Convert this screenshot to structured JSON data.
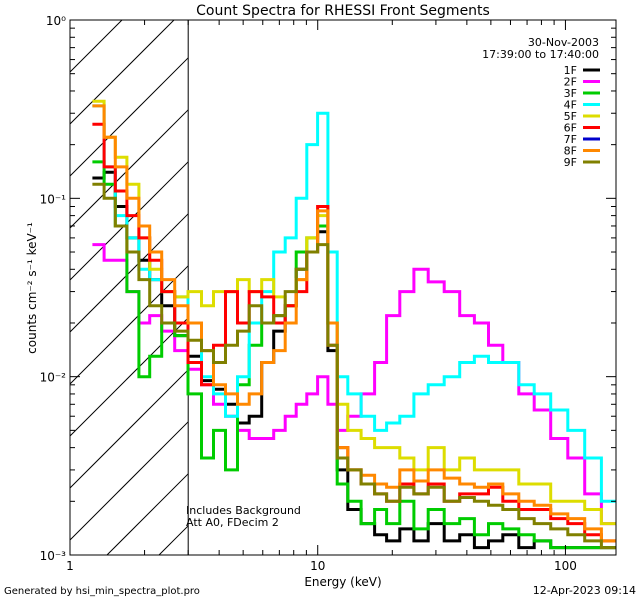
{
  "chart_data": {
    "type": "line",
    "title": "Count Spectra for RHESSI Front Segments",
    "xlabel": "Energy (keV)",
    "ylabel": "counts cm⁻² s⁻¹ keV⁻¹",
    "x_scale": "log",
    "y_scale": "log",
    "xlim": [
      1,
      160
    ],
    "ylim": [
      0.001,
      1
    ],
    "x_ticks": [
      {
        "value": 1,
        "label": "1"
      },
      {
        "value": 10,
        "label": "10"
      },
      {
        "value": 100,
        "label": "100"
      }
    ],
    "y_ticks": [
      {
        "value": 0.001,
        "label": "10⁻³"
      },
      {
        "value": 0.01,
        "label": "10⁻²"
      },
      {
        "value": 0.1,
        "label": "10⁻¹"
      },
      {
        "value": 1,
        "label": "10⁰"
      }
    ],
    "date": "30-Nov-2003",
    "time_range": "17:39:00 to 17:40:00",
    "annotation_lines": [
      "Includes Background",
      "Att A0, FDecim 2"
    ],
    "hatched_region_kev": [
      1,
      3
    ],
    "series": [
      {
        "name": "1F",
        "color": "#000000",
        "x": [
          1.3,
          1.45,
          1.6,
          1.8,
          2.0,
          2.2,
          2.5,
          2.8,
          3.2,
          3.6,
          4.0,
          4.5,
          5.0,
          5.6,
          6.3,
          7.0,
          7.8,
          8.6,
          9.5,
          10.5,
          11.5,
          12.5,
          14,
          16,
          18,
          20,
          23,
          26,
          30,
          35,
          40,
          46,
          52,
          60,
          70,
          80,
          95,
          110,
          130,
          150
        ],
        "y": [
          0.13,
          0.14,
          0.09,
          0.06,
          0.045,
          0.035,
          0.025,
          0.017,
          0.013,
          0.0095,
          0.0085,
          0.007,
          0.0055,
          0.006,
          0.012,
          0.018,
          0.025,
          0.04,
          0.05,
          0.065,
          0.014,
          0.003,
          0.0018,
          0.0015,
          0.0013,
          0.0012,
          0.0014,
          0.0012,
          0.0015,
          0.0012,
          0.0013,
          0.0011,
          0.0012,
          0.0013,
          0.0011,
          0.0012,
          0.0011,
          0.0011,
          0.0011,
          0.0011
        ]
      },
      {
        "name": "2F",
        "color": "#ff00ff",
        "x": [
          1.3,
          1.45,
          1.6,
          1.8,
          2.0,
          2.2,
          2.5,
          2.8,
          3.2,
          3.6,
          4.0,
          4.5,
          5.0,
          5.6,
          6.3,
          7.0,
          7.8,
          8.6,
          9.5,
          10.5,
          11.5,
          12.5,
          14,
          16,
          18,
          20,
          23,
          26,
          30,
          35,
          40,
          46,
          52,
          60,
          70,
          80,
          95,
          110,
          130,
          150
        ],
        "y": [
          0.055,
          0.045,
          0.045,
          0.03,
          0.02,
          0.022,
          0.018,
          0.014,
          0.011,
          0.009,
          0.007,
          0.006,
          0.005,
          0.0045,
          0.0045,
          0.005,
          0.006,
          0.007,
          0.008,
          0.01,
          0.007,
          0.005,
          0.006,
          0.008,
          0.012,
          0.022,
          0.03,
          0.04,
          0.034,
          0.03,
          0.022,
          0.02,
          0.015,
          0.012,
          0.008,
          0.0065,
          0.0045,
          0.0035,
          0.0022,
          0.0015
        ]
      },
      {
        "name": "3F",
        "color": "#00cc00",
        "x": [
          1.3,
          1.45,
          1.6,
          1.8,
          2.0,
          2.2,
          2.5,
          2.8,
          3.2,
          3.6,
          4.0,
          4.5,
          5.0,
          5.6,
          6.3,
          7.0,
          7.8,
          8.6,
          9.5,
          10.5,
          11.5,
          12.5,
          14,
          16,
          18,
          20,
          23,
          26,
          30,
          35,
          40,
          46,
          52,
          60,
          70,
          80,
          95,
          110,
          130,
          150
        ],
        "y": [
          0.16,
          0.12,
          0.07,
          0.03,
          0.01,
          0.013,
          0.02,
          0.017,
          0.008,
          0.0035,
          0.005,
          0.003,
          0.009,
          0.015,
          0.02,
          0.022,
          0.025,
          0.05,
          0.06,
          0.07,
          0.02,
          0.0025,
          0.002,
          0.0015,
          0.0018,
          0.0015,
          0.002,
          0.0014,
          0.0018,
          0.0015,
          0.0016,
          0.0013,
          0.0015,
          0.0014,
          0.0013,
          0.0012,
          0.0011,
          0.0011,
          0.0011,
          0.0011
        ]
      },
      {
        "name": "4F",
        "color": "#00ffff",
        "x": [
          1.3,
          1.45,
          1.6,
          1.8,
          2.0,
          2.2,
          2.5,
          2.8,
          3.2,
          3.6,
          4.0,
          4.5,
          5.0,
          5.6,
          6.3,
          7.0,
          7.8,
          8.6,
          9.5,
          10.5,
          11.5,
          12.5,
          14,
          16,
          18,
          20,
          23,
          26,
          30,
          35,
          40,
          46,
          52,
          60,
          70,
          80,
          95,
          110,
          130,
          150
        ],
        "y": [
          0.33,
          0.15,
          0.08,
          0.06,
          0.04,
          0.035,
          0.03,
          0.028,
          0.02,
          0.01,
          0.008,
          0.006,
          0.01,
          0.02,
          0.03,
          0.05,
          0.06,
          0.1,
          0.2,
          0.3,
          0.05,
          0.01,
          0.008,
          0.006,
          0.005,
          0.0055,
          0.006,
          0.008,
          0.009,
          0.01,
          0.012,
          0.013,
          0.012,
          0.012,
          0.009,
          0.008,
          0.0065,
          0.005,
          0.0035,
          0.002
        ]
      },
      {
        "name": "5F",
        "color": "#dddd00",
        "x": [
          1.3,
          1.45,
          1.6,
          1.8,
          2.0,
          2.2,
          2.5,
          2.8,
          3.2,
          3.6,
          4.0,
          4.5,
          5.0,
          5.6,
          6.3,
          7.0,
          7.8,
          8.6,
          9.5,
          10.5,
          11.5,
          12.5,
          14,
          16,
          18,
          20,
          23,
          26,
          30,
          35,
          40,
          46,
          52,
          60,
          70,
          80,
          95,
          110,
          130,
          150
        ],
        "y": [
          0.35,
          0.22,
          0.17,
          0.12,
          0.06,
          0.04,
          0.03,
          0.028,
          0.03,
          0.025,
          0.03,
          0.03,
          0.035,
          0.03,
          0.035,
          0.028,
          0.025,
          0.035,
          0.06,
          0.08,
          0.02,
          0.007,
          0.005,
          0.0045,
          0.004,
          0.004,
          0.0035,
          0.003,
          0.004,
          0.003,
          0.0035,
          0.003,
          0.003,
          0.003,
          0.0025,
          0.0025,
          0.002,
          0.002,
          0.0018,
          0.0015
        ]
      },
      {
        "name": "6F",
        "color": "#ff0000",
        "x": [
          1.3,
          1.45,
          1.6,
          1.8,
          2.0,
          2.2,
          2.5,
          2.8,
          3.2,
          3.6,
          4.0,
          4.5,
          5.0,
          5.6,
          6.3,
          7.0,
          7.8,
          8.6,
          9.5,
          10.5,
          11.5,
          12.5,
          14,
          16,
          18,
          20,
          23,
          26,
          30,
          35,
          40,
          46,
          52,
          60,
          70,
          80,
          95,
          110,
          130,
          150
        ],
        "y": [
          0.26,
          0.15,
          0.11,
          0.08,
          0.06,
          0.045,
          0.03,
          0.02,
          0.012,
          0.009,
          0.015,
          0.03,
          0.02,
          0.03,
          0.028,
          0.02,
          0.025,
          0.03,
          0.05,
          0.09,
          0.015,
          0.004,
          0.003,
          0.0025,
          0.0022,
          0.002,
          0.0025,
          0.0022,
          0.0025,
          0.002,
          0.0022,
          0.0022,
          0.0024,
          0.002,
          0.0018,
          0.0018,
          0.0016,
          0.0015,
          0.0013,
          0.0012
        ]
      },
      {
        "name": "7F",
        "color": "#0000cc",
        "x": [],
        "y": []
      },
      {
        "name": "8F",
        "color": "#ff8800",
        "x": [
          1.3,
          1.45,
          1.6,
          1.8,
          2.0,
          2.2,
          2.5,
          2.8,
          3.2,
          3.6,
          4.0,
          4.5,
          5.0,
          5.6,
          6.3,
          7.0,
          7.8,
          8.6,
          9.5,
          10.5,
          11.5,
          12.5,
          14,
          16,
          18,
          20,
          23,
          26,
          30,
          35,
          40,
          46,
          52,
          60,
          70,
          80,
          95,
          110,
          130,
          150
        ],
        "y": [
          0.33,
          0.22,
          0.15,
          0.1,
          0.07,
          0.05,
          0.035,
          0.025,
          0.02,
          0.014,
          0.009,
          0.008,
          0.007,
          0.008,
          0.012,
          0.014,
          0.02,
          0.035,
          0.05,
          0.085,
          0.02,
          0.004,
          0.003,
          0.0028,
          0.0025,
          0.0024,
          0.003,
          0.0026,
          0.003,
          0.0027,
          0.0025,
          0.0024,
          0.0025,
          0.0022,
          0.002,
          0.0019,
          0.0017,
          0.0016,
          0.0014,
          0.0012
        ]
      },
      {
        "name": "9F",
        "color": "#808000",
        "x": [
          1.3,
          1.45,
          1.6,
          1.8,
          2.0,
          2.2,
          2.5,
          2.8,
          3.2,
          3.6,
          4.0,
          4.5,
          5.0,
          5.6,
          6.3,
          7.0,
          7.8,
          8.6,
          9.5,
          10.5,
          11.5,
          12.5,
          14,
          16,
          18,
          20,
          23,
          26,
          30,
          35,
          40,
          46,
          52,
          60,
          70,
          80,
          95,
          110,
          130,
          150
        ],
        "y": [
          0.12,
          0.1,
          0.07,
          0.05,
          0.035,
          0.025,
          0.02,
          0.018,
          0.016,
          0.014,
          0.012,
          0.015,
          0.018,
          0.025,
          0.02,
          0.022,
          0.03,
          0.04,
          0.05,
          0.055,
          0.015,
          0.0035,
          0.003,
          0.0025,
          0.0022,
          0.002,
          0.0024,
          0.0022,
          0.0024,
          0.002,
          0.0021,
          0.002,
          0.0019,
          0.0018,
          0.0016,
          0.0015,
          0.0014,
          0.0013,
          0.0012,
          0.0011
        ]
      }
    ]
  },
  "footer": {
    "generated_by": "Generated by hsi_min_spectra_plot.pro",
    "timestamp": "12-Apr-2023 09:14"
  }
}
